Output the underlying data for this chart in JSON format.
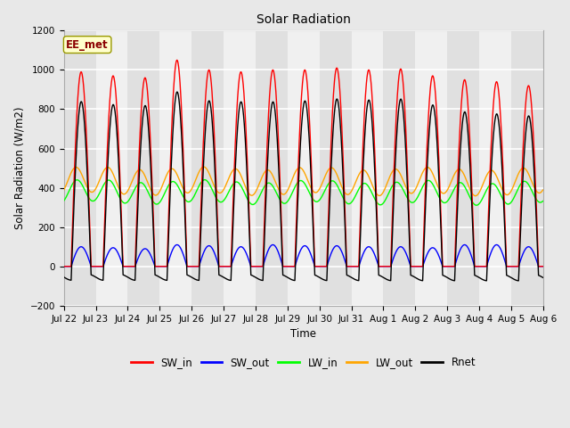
{
  "title": "Solar Radiation",
  "ylabel": "Solar Radiation (W/m2)",
  "xlabel": "Time",
  "ylim": [
    -200,
    1200
  ],
  "yticks": [
    -200,
    0,
    200,
    400,
    600,
    800,
    1000,
    1200
  ],
  "annotation_text": "EE_met",
  "annotation_color": "#8B0000",
  "annotation_bg": "#FFFFCC",
  "bg_color": "#E8E8E8",
  "plot_bg_even": "#E0E0E0",
  "plot_bg_odd": "#F0F0F0",
  "n_days": 15,
  "SW_in_peaks": [
    990,
    970,
    960,
    1050,
    1000,
    990,
    1000,
    1000,
    1010,
    1000,
    1005,
    970,
    950,
    940,
    920
  ],
  "SW_out_peaks": [
    100,
    95,
    90,
    110,
    105,
    100,
    110,
    105,
    105,
    100,
    100,
    95,
    110,
    110,
    100
  ],
  "LW_in_base": 380,
  "LW_out_base": 435,
  "tick_labels": [
    "Jul 22",
    "Jul 23",
    "Jul 24",
    "Jul 25",
    "Jul 26",
    "Jul 27",
    "Jul 28",
    "Jul 29",
    "Jul 30",
    "Jul 31",
    "Aug 1",
    "Aug 2",
    "Aug 3",
    "Aug 4",
    "Aug 5",
    "Aug 6"
  ],
  "line_width": 1.0
}
